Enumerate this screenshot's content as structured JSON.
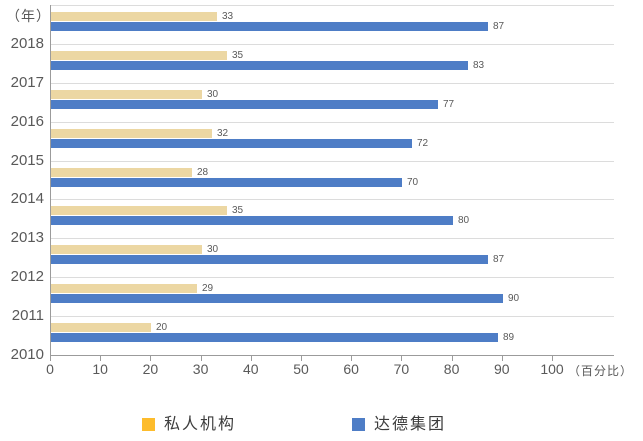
{
  "chart": {
    "y_axis_title": "（年）",
    "x_axis_unit": "（百分比）",
    "x_ticks": [
      0,
      10,
      20,
      30,
      40,
      50,
      60,
      70,
      80,
      90,
      100
    ],
    "legend": [
      {
        "label": "私人机构",
        "swatch_color": "#fdbc2c"
      },
      {
        "label": "达德集团",
        "swatch_color": "#4e7dc6"
      }
    ],
    "colors": {
      "series0_bar": "#ecd7a3",
      "series1_bar": "#4e7dc6",
      "gridline": "#dcdcdc",
      "axis": "#9b9b9b",
      "text": "#595959"
    }
  },
  "chart_data": {
    "type": "bar",
    "orientation": "horizontal",
    "title": "",
    "xlabel": "百分比",
    "ylabel": "年",
    "xlim": [
      0,
      100
    ],
    "grid": "horizontal-group-boundaries",
    "legend_position": "bottom",
    "categories": [
      "2018",
      "2017",
      "2016",
      "2015",
      "2014",
      "2013",
      "2012",
      "2011",
      "2010"
    ],
    "series": [
      {
        "name": "私人机构",
        "color": "#ecd7a3",
        "values": [
          33,
          35,
          30,
          32,
          28,
          35,
          30,
          29,
          20
        ]
      },
      {
        "name": "达德集团",
        "color": "#4e7dc6",
        "values": [
          87,
          83,
          77,
          72,
          70,
          80,
          87,
          90,
          89
        ]
      }
    ]
  }
}
